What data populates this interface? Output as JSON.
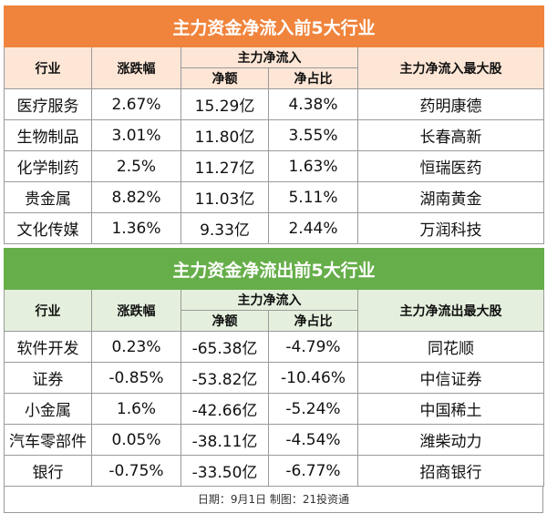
{
  "inflow": {
    "title": "主力资金净流入前5大行业",
    "headers": {
      "industry": "行业",
      "change": "涨跌幅",
      "group": "主力净流入",
      "amount": "净额",
      "ratio": "净占比",
      "top_stock": "主力净流入最大股"
    },
    "rows": [
      {
        "industry": "医疗服务",
        "change": "2.67%",
        "amount": "15.29亿",
        "ratio": "4.38%",
        "stock": "药明康德"
      },
      {
        "industry": "生物制品",
        "change": "3.01%",
        "amount": "11.80亿",
        "ratio": "3.55%",
        "stock": "长春高新"
      },
      {
        "industry": "化学制药",
        "change": "2.5%",
        "amount": "11.27亿",
        "ratio": "1.63%",
        "stock": "恒瑞医药"
      },
      {
        "industry": "贵金属",
        "change": "8.82%",
        "amount": "11.03亿",
        "ratio": "5.11%",
        "stock": "湖南黄金"
      },
      {
        "industry": "文化传媒",
        "change": "1.36%",
        "amount": "9.33亿",
        "ratio": "2.44%",
        "stock": "万润科技"
      }
    ]
  },
  "outflow": {
    "title": "主力资金净流出前5大行业",
    "headers": {
      "industry": "行业",
      "change": "涨跌幅",
      "group": "主力净流入",
      "amount": "净额",
      "ratio": "净占比",
      "top_stock": "主力净流出最大股"
    },
    "rows": [
      {
        "industry": "软件开发",
        "change": "0.23%",
        "amount": "-65.38亿",
        "ratio": "-4.79%",
        "stock": "同花顺"
      },
      {
        "industry": "证券",
        "change": "-0.85%",
        "amount": "-53.82亿",
        "ratio": "-10.46%",
        "stock": "中信证券"
      },
      {
        "industry": "小金属",
        "change": "1.6%",
        "amount": "-42.66亿",
        "ratio": "-5.24%",
        "stock": "中国稀土"
      },
      {
        "industry": "汽车零部件",
        "change": "0.05%",
        "amount": "-38.11亿",
        "ratio": "-4.54%",
        "stock": "潍柴动力"
      },
      {
        "industry": "银行",
        "change": "-0.75%",
        "amount": "-33.50亿",
        "ratio": "-6.77%",
        "stock": "招商银行"
      }
    ]
  },
  "footer": "日期：9月1日 制图：21投资通",
  "colors": {
    "inflow_accent": "#f0843c",
    "outflow_accent": "#66ae4a"
  }
}
